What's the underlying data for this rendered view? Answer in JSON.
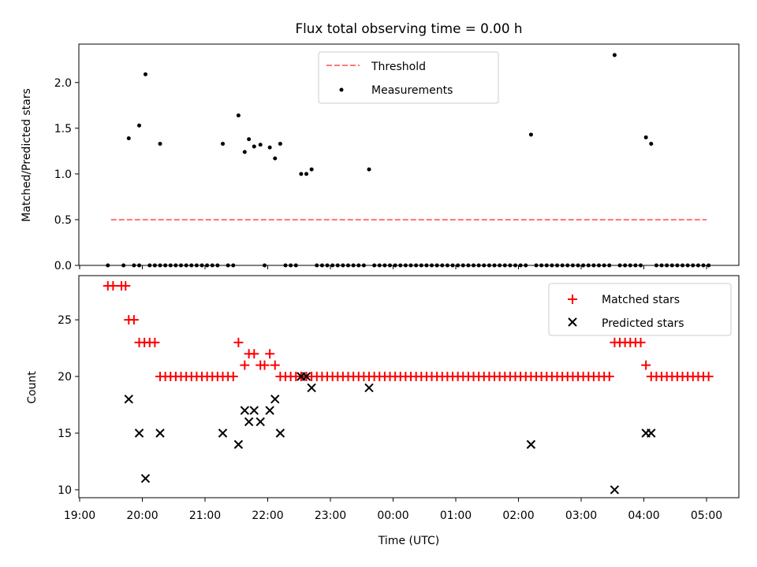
{
  "chart_data": [
    {
      "type": "scatter",
      "title": "Flux total observing time = 0.00 h",
      "xlabel": "",
      "ylabel": "Matched/Predicted stars",
      "ylim": [
        0,
        2.42
      ],
      "yticks": [
        "0.0",
        "0.5",
        "1.0",
        "1.5",
        "2.0"
      ],
      "grid": false,
      "legend": "upper-center",
      "threshold": {
        "name": "Threshold",
        "value": 0.5,
        "x_start": "19:30",
        "x_end": "05:00",
        "color": "#ff7777"
      },
      "series": [
        {
          "name": "Measurements",
          "color": "#000000",
          "points": [
            [
              "19:47",
              1.39
            ],
            [
              "19:57",
              1.53
            ],
            [
              "20:03",
              2.09
            ],
            [
              "20:17",
              1.33
            ],
            [
              "21:17",
              1.33
            ],
            [
              "21:32",
              1.64
            ],
            [
              "21:38",
              1.24
            ],
            [
              "21:42",
              1.38
            ],
            [
              "21:47",
              1.3
            ],
            [
              "21:53",
              1.32
            ],
            [
              "22:02",
              1.29
            ],
            [
              "22:07",
              1.17
            ],
            [
              "22:12",
              1.33
            ],
            [
              "22:32",
              1.0
            ],
            [
              "22:37",
              1.0
            ],
            [
              "22:42",
              1.05
            ],
            [
              "23:37",
              1.05
            ],
            [
              "02:12",
              1.43
            ],
            [
              "03:32",
              2.3
            ],
            [
              "04:02",
              1.4
            ],
            [
              "04:07",
              1.33
            ],
            [
              "19:27",
              0
            ],
            [
              "19:42",
              0
            ],
            [
              "19:52",
              0
            ],
            [
              "19:57",
              0
            ],
            [
              "20:07",
              0
            ],
            [
              "20:12",
              0
            ],
            [
              "20:17",
              0
            ],
            [
              "20:22",
              0
            ],
            [
              "20:27",
              0
            ],
            [
              "20:32",
              0
            ],
            [
              "20:37",
              0
            ],
            [
              "20:42",
              0
            ],
            [
              "20:47",
              0
            ],
            [
              "20:52",
              0
            ],
            [
              "20:57",
              0
            ],
            [
              "21:02",
              0
            ],
            [
              "21:07",
              0
            ],
            [
              "21:12",
              0
            ],
            [
              "21:22",
              0
            ],
            [
              "21:27",
              0
            ],
            [
              "21:57",
              0
            ],
            [
              "22:17",
              0
            ],
            [
              "22:22",
              0
            ],
            [
              "22:27",
              0
            ],
            [
              "22:47",
              0
            ],
            [
              "22:52",
              0
            ],
            [
              "22:57",
              0
            ],
            [
              "23:02",
              0
            ],
            [
              "23:07",
              0
            ],
            [
              "23:12",
              0
            ],
            [
              "23:17",
              0
            ],
            [
              "23:22",
              0
            ],
            [
              "23:27",
              0
            ],
            [
              "23:32",
              0
            ],
            [
              "23:42",
              0
            ],
            [
              "23:47",
              0
            ],
            [
              "23:52",
              0
            ],
            [
              "23:57",
              0
            ],
            [
              "00:02",
              0
            ],
            [
              "00:07",
              0
            ],
            [
              "00:12",
              0
            ],
            [
              "00:17",
              0
            ],
            [
              "00:22",
              0
            ],
            [
              "00:27",
              0
            ],
            [
              "00:32",
              0
            ],
            [
              "00:37",
              0
            ],
            [
              "00:42",
              0
            ],
            [
              "00:47",
              0
            ],
            [
              "00:52",
              0
            ],
            [
              "00:57",
              0
            ],
            [
              "01:02",
              0
            ],
            [
              "01:07",
              0
            ],
            [
              "01:12",
              0
            ],
            [
              "01:17",
              0
            ],
            [
              "01:22",
              0
            ],
            [
              "01:27",
              0
            ],
            [
              "01:32",
              0
            ],
            [
              "01:37",
              0
            ],
            [
              "01:42",
              0
            ],
            [
              "01:47",
              0
            ],
            [
              "01:52",
              0
            ],
            [
              "01:57",
              0
            ],
            [
              "02:02",
              0
            ],
            [
              "02:07",
              0
            ],
            [
              "02:17",
              0
            ],
            [
              "02:22",
              0
            ],
            [
              "02:27",
              0
            ],
            [
              "02:32",
              0
            ],
            [
              "02:37",
              0
            ],
            [
              "02:42",
              0
            ],
            [
              "02:47",
              0
            ],
            [
              "02:52",
              0
            ],
            [
              "02:57",
              0
            ],
            [
              "03:02",
              0
            ],
            [
              "03:07",
              0
            ],
            [
              "03:12",
              0
            ],
            [
              "03:17",
              0
            ],
            [
              "03:22",
              0
            ],
            [
              "03:27",
              0
            ],
            [
              "03:37",
              0
            ],
            [
              "03:42",
              0
            ],
            [
              "03:47",
              0
            ],
            [
              "03:52",
              0
            ],
            [
              "03:57",
              0
            ],
            [
              "04:12",
              0
            ],
            [
              "04:17",
              0
            ],
            [
              "04:22",
              0
            ],
            [
              "04:27",
              0
            ],
            [
              "04:32",
              0
            ],
            [
              "04:37",
              0
            ],
            [
              "04:42",
              0
            ],
            [
              "04:47",
              0
            ],
            [
              "04:52",
              0
            ],
            [
              "04:57",
              0
            ],
            [
              "05:02",
              0
            ]
          ]
        }
      ]
    },
    {
      "type": "scatter",
      "title": "",
      "xlabel": "Time (UTC)",
      "ylabel": "Count",
      "ylim": [
        9.3,
        28.9
      ],
      "yticks": [
        "10",
        "15",
        "20",
        "25"
      ],
      "xlim": [
        "18:58",
        "05:32"
      ],
      "xticks": [
        "19:00",
        "20:00",
        "21:00",
        "22:00",
        "23:00",
        "00:00",
        "01:00",
        "02:00",
        "03:00",
        "04:00",
        "05:00"
      ],
      "grid": false,
      "legend": "top-right",
      "series": [
        {
          "name": "Matched stars",
          "color": "#ff0000",
          "marker": "+",
          "points": [
            [
              "19:27",
              28
            ],
            [
              "19:32",
              28
            ],
            [
              "19:40",
              28
            ],
            [
              "19:44",
              28
            ],
            [
              "19:47",
              25
            ],
            [
              "19:52",
              25
            ],
            [
              "19:57",
              23
            ],
            [
              "20:02",
              23
            ],
            [
              "20:07",
              23
            ],
            [
              "20:12",
              23
            ],
            [
              "20:17",
              20
            ],
            [
              "20:22",
              20
            ],
            [
              "20:27",
              20
            ],
            [
              "20:32",
              20
            ],
            [
              "20:37",
              20
            ],
            [
              "20:42",
              20
            ],
            [
              "20:47",
              20
            ],
            [
              "20:52",
              20
            ],
            [
              "20:57",
              20
            ],
            [
              "21:02",
              20
            ],
            [
              "21:07",
              20
            ],
            [
              "21:12",
              20
            ],
            [
              "21:17",
              20
            ],
            [
              "21:22",
              20
            ],
            [
              "21:27",
              20
            ],
            [
              "21:32",
              23
            ],
            [
              "21:38",
              21
            ],
            [
              "21:42",
              22
            ],
            [
              "21:47",
              22
            ],
            [
              "21:53",
              21
            ],
            [
              "21:57",
              21
            ],
            [
              "22:02",
              22
            ],
            [
              "22:07",
              21
            ],
            [
              "22:12",
              20
            ],
            [
              "22:17",
              20
            ],
            [
              "22:22",
              20
            ],
            [
              "22:27",
              20
            ],
            [
              "22:32",
              20
            ],
            [
              "22:37",
              20
            ],
            [
              "22:42",
              20
            ],
            [
              "22:47",
              20
            ],
            [
              "22:52",
              20
            ],
            [
              "22:57",
              20
            ],
            [
              "23:02",
              20
            ],
            [
              "23:07",
              20
            ],
            [
              "23:12",
              20
            ],
            [
              "23:17",
              20
            ],
            [
              "23:22",
              20
            ],
            [
              "23:27",
              20
            ],
            [
              "23:32",
              20
            ],
            [
              "23:37",
              20
            ],
            [
              "23:42",
              20
            ],
            [
              "23:47",
              20
            ],
            [
              "23:52",
              20
            ],
            [
              "23:57",
              20
            ],
            [
              "00:02",
              20
            ],
            [
              "00:07",
              20
            ],
            [
              "00:12",
              20
            ],
            [
              "00:17",
              20
            ],
            [
              "00:22",
              20
            ],
            [
              "00:27",
              20
            ],
            [
              "00:32",
              20
            ],
            [
              "00:37",
              20
            ],
            [
              "00:42",
              20
            ],
            [
              "00:47",
              20
            ],
            [
              "00:52",
              20
            ],
            [
              "00:57",
              20
            ],
            [
              "01:02",
              20
            ],
            [
              "01:07",
              20
            ],
            [
              "01:12",
              20
            ],
            [
              "01:17",
              20
            ],
            [
              "01:22",
              20
            ],
            [
              "01:27",
              20
            ],
            [
              "01:32",
              20
            ],
            [
              "01:37",
              20
            ],
            [
              "01:42",
              20
            ],
            [
              "01:47",
              20
            ],
            [
              "01:52",
              20
            ],
            [
              "01:57",
              20
            ],
            [
              "02:02",
              20
            ],
            [
              "02:07",
              20
            ],
            [
              "02:12",
              20
            ],
            [
              "02:17",
              20
            ],
            [
              "02:22",
              20
            ],
            [
              "02:27",
              20
            ],
            [
              "02:32",
              20
            ],
            [
              "02:37",
              20
            ],
            [
              "02:42",
              20
            ],
            [
              "02:47",
              20
            ],
            [
              "02:52",
              20
            ],
            [
              "02:57",
              20
            ],
            [
              "03:02",
              20
            ],
            [
              "03:07",
              20
            ],
            [
              "03:12",
              20
            ],
            [
              "03:17",
              20
            ],
            [
              "03:22",
              20
            ],
            [
              "03:27",
              20
            ],
            [
              "03:32",
              23
            ],
            [
              "03:37",
              23
            ],
            [
              "03:42",
              23
            ],
            [
              "03:47",
              23
            ],
            [
              "03:52",
              23
            ],
            [
              "03:57",
              23
            ],
            [
              "04:02",
              21
            ],
            [
              "04:07",
              20
            ],
            [
              "04:12",
              20
            ],
            [
              "04:17",
              20
            ],
            [
              "04:22",
              20
            ],
            [
              "04:27",
              20
            ],
            [
              "04:32",
              20
            ],
            [
              "04:37",
              20
            ],
            [
              "04:42",
              20
            ],
            [
              "04:47",
              20
            ],
            [
              "04:52",
              20
            ],
            [
              "04:57",
              20
            ],
            [
              "05:02",
              20
            ]
          ]
        },
        {
          "name": "Predicted stars",
          "color": "#000000",
          "marker": "x",
          "points": [
            [
              "19:47",
              18
            ],
            [
              "19:57",
              15
            ],
            [
              "20:03",
              11
            ],
            [
              "20:17",
              15
            ],
            [
              "21:17",
              15
            ],
            [
              "21:32",
              14
            ],
            [
              "21:38",
              17
            ],
            [
              "21:42",
              16
            ],
            [
              "21:47",
              17
            ],
            [
              "21:53",
              16
            ],
            [
              "22:02",
              17
            ],
            [
              "22:07",
              18
            ],
            [
              "22:12",
              15
            ],
            [
              "22:32",
              20
            ],
            [
              "22:37",
              20
            ],
            [
              "22:42",
              19
            ],
            [
              "23:37",
              19
            ],
            [
              "02:12",
              14
            ],
            [
              "03:32",
              10
            ],
            [
              "04:02",
              15
            ],
            [
              "04:07",
              15
            ]
          ]
        }
      ]
    }
  ]
}
